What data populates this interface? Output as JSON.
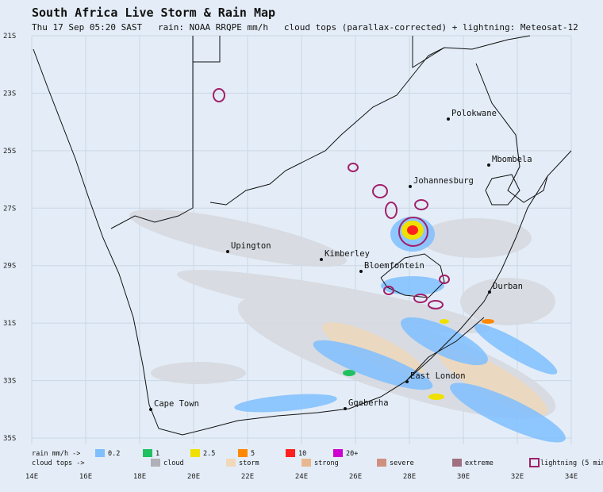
{
  "header": {
    "title": "South Africa Live Storm & Rain Map",
    "subtitle": "Thu 17 Sep 05:20 SAST   rain: NOAA RRQPE mm/h   cloud tops (parallax-corrected) + lightning: Meteosat-12"
  },
  "map": {
    "lat_labels": [
      "21S",
      "23S",
      "25S",
      "27S",
      "29S",
      "31S",
      "33S",
      "35S"
    ],
    "lon_labels": [
      "14E",
      "16E",
      "18E",
      "20E",
      "22E",
      "24E",
      "26E",
      "28E",
      "30E",
      "32E",
      "34E"
    ],
    "cities": [
      "Polokwane",
      "Mbombela",
      "Johannesburg",
      "Upington",
      "Kimberley",
      "Bloemfontein",
      "Durban",
      "East London",
      "Cape Town",
      "Gqeberha"
    ]
  },
  "legend": {
    "rain_label": "rain mm/h ->",
    "rain": [
      "0.2",
      "1",
      "2.5",
      "5",
      "10",
      "20+"
    ],
    "cloud_label": "cloud tops ->",
    "cloud": [
      "cloud",
      "storm",
      "strong",
      "severe",
      "extreme"
    ],
    "lightning": "lightning (5 min"
  }
}
